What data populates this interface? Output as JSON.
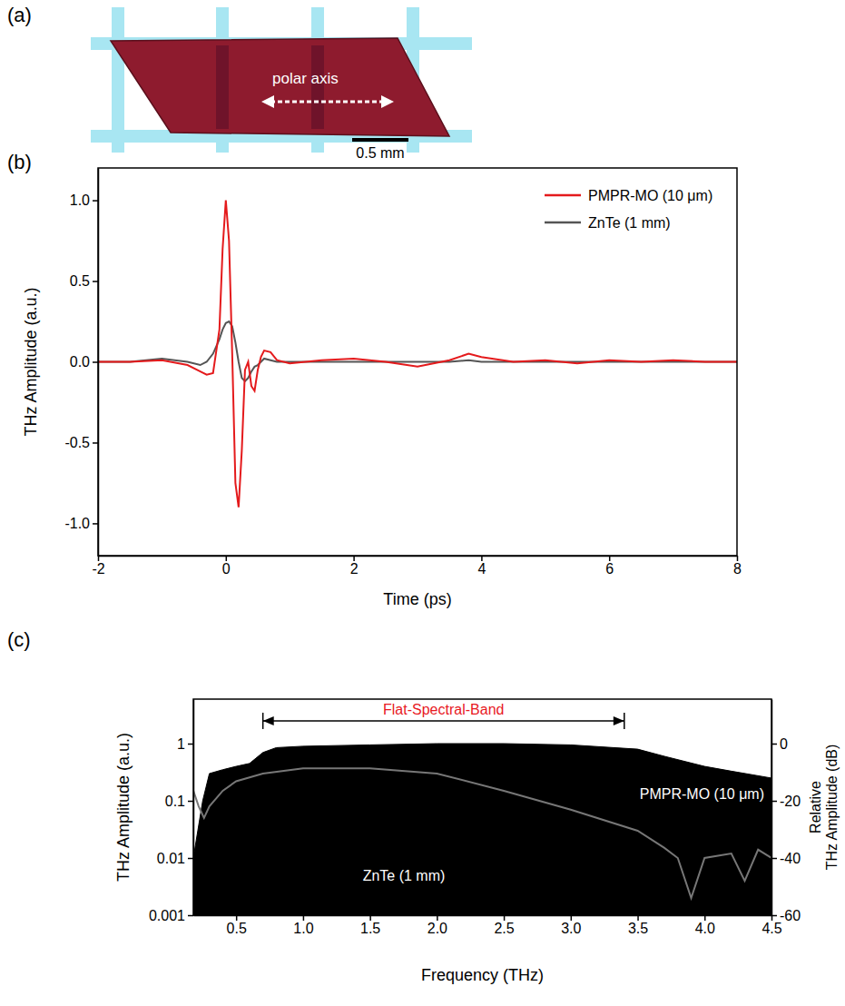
{
  "photo": {
    "label": "(a)",
    "annotation": "polar axis",
    "scale_bar": "0.5 mm"
  },
  "chart_data": [
    {
      "type": "line",
      "label": "(b)",
      "x_label": "Time (ps)",
      "y_label": "THz Amplitude (a.u.)",
      "x": [
        -2,
        -1.5,
        -1.0,
        -0.6,
        -0.4,
        -0.3,
        -0.2,
        -0.1,
        -0.05,
        0,
        0.05,
        0.1,
        0.15,
        0.2,
        0.25,
        0.3,
        0.35,
        0.4,
        0.45,
        0.5,
        0.55,
        0.6,
        0.7,
        0.8,
        1.0,
        1.5,
        2.0,
        2.5,
        3.0,
        3.5,
        3.8,
        4.0,
        4.5,
        5,
        5.5,
        6,
        6.5,
        7,
        7.5,
        8
      ],
      "series": [
        {
          "name": "PMPR-MO (10 μm)",
          "color": "#e41a1c",
          "values": [
            0,
            0,
            0.01,
            -0.02,
            -0.06,
            -0.08,
            -0.07,
            0.2,
            0.7,
            1.0,
            0.75,
            0.05,
            -0.75,
            -0.9,
            -0.55,
            -0.05,
            0.0,
            -0.15,
            -0.18,
            -0.05,
            0.03,
            0.07,
            0.06,
            0.01,
            -0.01,
            0.01,
            0.02,
            0.0,
            -0.03,
            0.01,
            0.05,
            0.03,
            0.0,
            0.01,
            -0.01,
            0.01,
            0,
            0.01,
            0,
            0
          ]
        },
        {
          "name": "ZnTe (1 mm)",
          "color": "#555555",
          "values": [
            0,
            0,
            0.02,
            0.0,
            -0.02,
            0.0,
            0.05,
            0.14,
            0.2,
            0.24,
            0.25,
            0.22,
            0.12,
            0.0,
            -0.1,
            -0.12,
            -0.1,
            -0.06,
            -0.03,
            -0.02,
            0,
            0.02,
            0.01,
            0,
            0,
            0,
            0,
            0,
            0,
            0,
            0.01,
            0,
            0,
            0,
            0,
            0,
            0,
            0,
            0,
            0
          ]
        }
      ],
      "xlim": [
        -2,
        8
      ],
      "xticks": [
        -2,
        0,
        2,
        4,
        6,
        8
      ],
      "ylim": [
        -1.2,
        1.2
      ],
      "yticks": [
        {
          "value": -1,
          "label": "-1.0"
        },
        {
          "value": -0.5,
          "label": "-0.5"
        },
        {
          "value": 0,
          "label": "0.0"
        },
        {
          "value": 0.5,
          "label": "0.5"
        },
        {
          "value": 1,
          "label": "1.0"
        }
      ],
      "legend": "upper right"
    },
    {
      "type": "area",
      "label": "(c)",
      "x_label": "Frequency (THz)",
      "y_label": "THz Amplitude (a.u.)",
      "y2_label": "Relative THz Amplitude (dB)",
      "log": "y",
      "series": [
        {
          "name": "PMPR-MO (10 μm)",
          "type": "area",
          "color": "#000000",
          "x": [
            0.18,
            0.25,
            0.3,
            0.4,
            0.5,
            0.6,
            0.7,
            0.8,
            1.0,
            1.5,
            2.0,
            2.5,
            3.0,
            3.5,
            3.7,
            4.0,
            4.2,
            4.5
          ],
          "values": [
            0.01,
            0.1,
            0.3,
            0.35,
            0.4,
            0.45,
            0.7,
            0.85,
            0.9,
            0.95,
            1.0,
            1.0,
            0.95,
            0.8,
            0.6,
            0.4,
            0.33,
            0.25
          ]
        },
        {
          "name": "ZnTe (1 mm)",
          "type": "line",
          "color": "#777777",
          "x": [
            0.18,
            0.22,
            0.26,
            0.3,
            0.4,
            0.5,
            0.7,
            1.0,
            1.5,
            2.0,
            2.5,
            3.0,
            3.5,
            3.7,
            3.8,
            3.9,
            4.0,
            4.2,
            4.3,
            4.4,
            4.5
          ],
          "values": [
            0.15,
            0.08,
            0.05,
            0.08,
            0.15,
            0.22,
            0.3,
            0.37,
            0.37,
            0.3,
            0.15,
            0.07,
            0.03,
            0.015,
            0.01,
            0.002,
            0.01,
            0.012,
            0.004,
            0.014,
            0.01
          ]
        }
      ],
      "xlim": [
        0.18,
        4.5
      ],
      "xticks": [
        0.5,
        {
          "value": 1,
          "label": "1.0"
        },
        1.5,
        {
          "value": 2,
          "label": "2.0"
        },
        2.5,
        {
          "value": 3,
          "label": "3.0"
        },
        3.5,
        {
          "value": 4,
          "label": "4.0"
        },
        4.5
      ],
      "ylim": [
        0.001,
        6
      ],
      "yticks": [
        0.001,
        0.01,
        0.1,
        1
      ],
      "y2lim": [
        -60,
        15.56
      ],
      "y2ticks": [
        -60,
        -40,
        -20,
        0
      ],
      "annotations": [
        {
          "text": "Flat-Spectral-Band",
          "x": [
            0.7,
            3.4
          ],
          "y": 2.5,
          "color": "#e8191f"
        }
      ]
    }
  ]
}
